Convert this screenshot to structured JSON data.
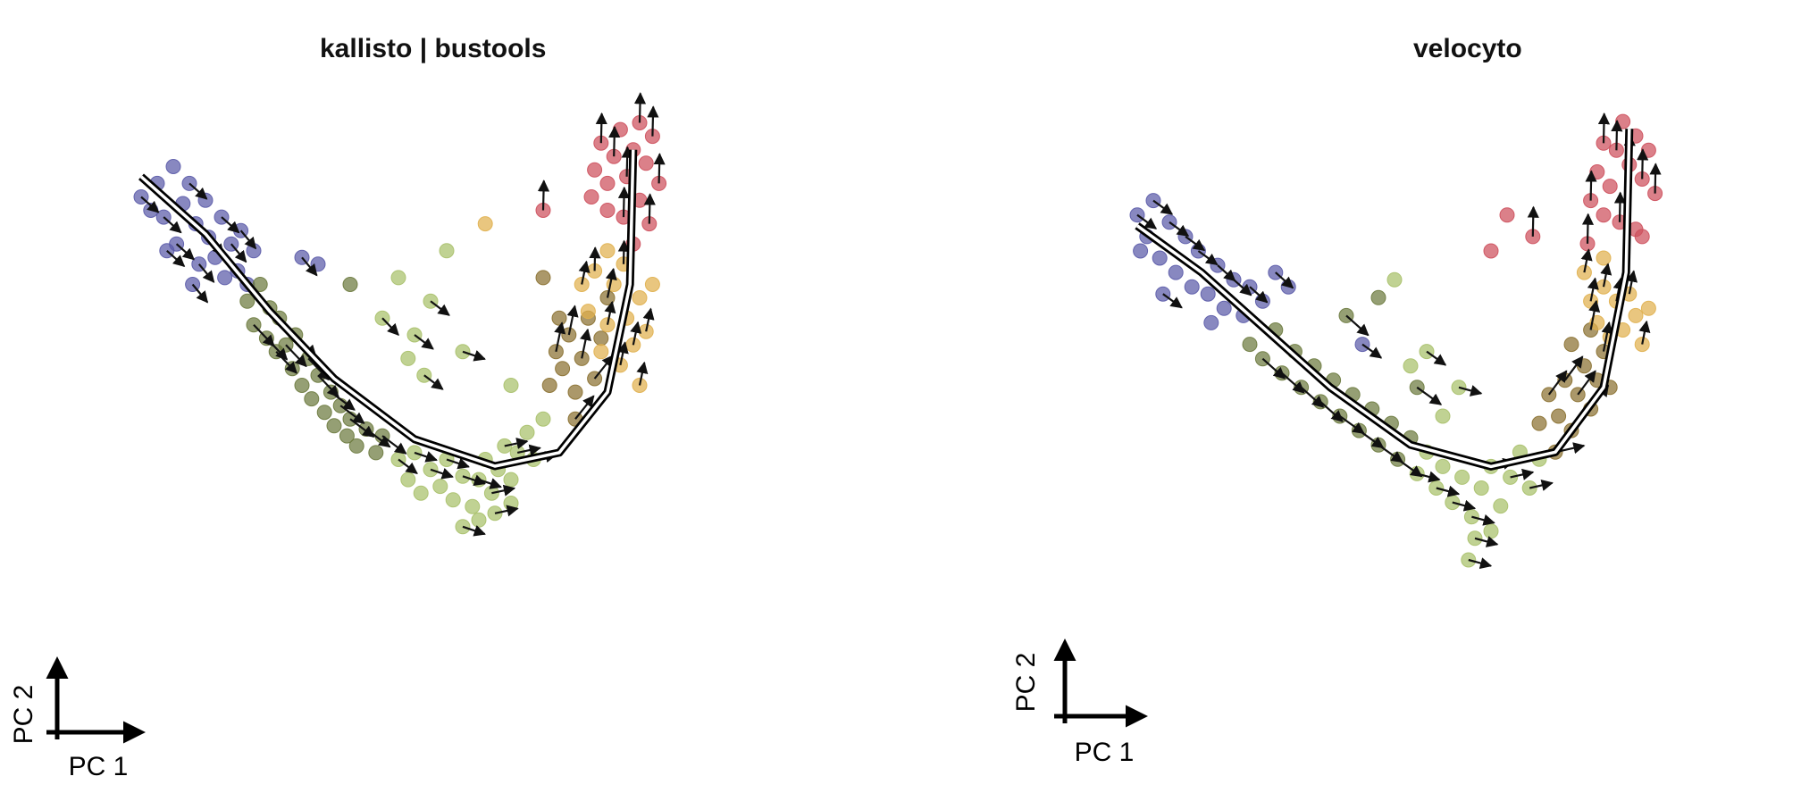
{
  "chart_data": [
    {
      "type": "scatter",
      "title": "kallisto | bustools",
      "xlabel": "PC 1",
      "ylabel": "PC 2",
      "grid": false,
      "legend": "none",
      "principal_curve": [
        [
          -0.95,
          0.92
        ],
        [
          -0.75,
          0.75
        ],
        [
          -0.55,
          0.52
        ],
        [
          -0.35,
          0.32
        ],
        [
          -0.1,
          0.14
        ],
        [
          0.15,
          0.06
        ],
        [
          0.35,
          0.1
        ],
        [
          0.5,
          0.28
        ],
        [
          0.57,
          0.6
        ],
        [
          0.58,
          1.0
        ]
      ],
      "series": [
        {
          "name": "",
          "color": "#5a5aa8",
          "points": [
            [
              -0.95,
              0.86
            ],
            [
              -0.9,
              0.9
            ],
            [
              -0.88,
              0.8
            ],
            [
              -0.85,
              0.95
            ],
            [
              -0.84,
              0.72
            ],
            [
              -0.82,
              0.84
            ],
            [
              -0.8,
              0.9
            ],
            [
              -0.78,
              0.78
            ],
            [
              -0.77,
              0.66
            ],
            [
              -0.75,
              0.85
            ],
            [
              -0.74,
              0.74
            ],
            [
              -0.72,
              0.68
            ],
            [
              -0.7,
              0.8
            ],
            [
              -0.69,
              0.62
            ],
            [
              -0.67,
              0.72
            ],
            [
              -0.65,
              0.64
            ],
            [
              -0.64,
              0.76
            ],
            [
              -0.62,
              0.6
            ],
            [
              -0.87,
              0.7
            ],
            [
              -0.92,
              0.82
            ],
            [
              -0.79,
              0.6
            ],
            [
              -0.6,
              0.7
            ],
            [
              -0.45,
              0.68
            ],
            [
              -0.4,
              0.66
            ]
          ]
        },
        {
          "name": "",
          "color": "#6c7a3e",
          "points": [
            [
              -0.62,
              0.55
            ],
            [
              -0.6,
              0.48
            ],
            [
              -0.58,
              0.6
            ],
            [
              -0.56,
              0.44
            ],
            [
              -0.55,
              0.53
            ],
            [
              -0.53,
              0.4
            ],
            [
              -0.52,
              0.5
            ],
            [
              -0.5,
              0.42
            ],
            [
              -0.48,
              0.35
            ],
            [
              -0.47,
              0.45
            ],
            [
              -0.45,
              0.3
            ],
            [
              -0.43,
              0.38
            ],
            [
              -0.42,
              0.26
            ],
            [
              -0.4,
              0.33
            ],
            [
              -0.38,
              0.22
            ],
            [
              -0.36,
              0.28
            ],
            [
              -0.35,
              0.18
            ],
            [
              -0.33,
              0.24
            ],
            [
              -0.31,
              0.15
            ],
            [
              -0.3,
              0.2
            ],
            [
              -0.28,
              0.12
            ],
            [
              -0.25,
              0.17
            ],
            [
              -0.22,
              0.1
            ],
            [
              -0.2,
              0.15
            ],
            [
              -0.3,
              0.6
            ]
          ]
        },
        {
          "name": "",
          "color": "#a8c06a",
          "points": [
            [
              -0.15,
              0.08
            ],
            [
              -0.12,
              0.02
            ],
            [
              -0.1,
              0.1
            ],
            [
              -0.08,
              -0.02
            ],
            [
              -0.05,
              0.05
            ],
            [
              -0.02,
              0.0
            ],
            [
              0.0,
              0.08
            ],
            [
              0.02,
              -0.04
            ],
            [
              0.05,
              0.03
            ],
            [
              0.08,
              -0.06
            ],
            [
              0.1,
              0.02
            ],
            [
              0.12,
              0.08
            ],
            [
              0.14,
              -0.02
            ],
            [
              0.16,
              0.05
            ],
            [
              0.18,
              0.12
            ],
            [
              0.2,
              0.02
            ],
            [
              0.22,
              0.1
            ],
            [
              0.25,
              0.16
            ],
            [
              0.27,
              0.08
            ],
            [
              0.3,
              0.2
            ],
            [
              0.05,
              -0.12
            ],
            [
              0.1,
              -0.1
            ],
            [
              0.15,
              -0.08
            ],
            [
              0.2,
              -0.05
            ],
            [
              -0.2,
              0.5
            ],
            [
              -0.15,
              0.62
            ],
            [
              -0.1,
              0.45
            ],
            [
              -0.12,
              0.38
            ],
            [
              -0.05,
              0.55
            ],
            [
              0.0,
              0.7
            ],
            [
              0.05,
              0.4
            ],
            [
              0.2,
              0.3
            ],
            [
              -0.07,
              0.33
            ]
          ]
        },
        {
          "name": "",
          "color": "#8a7030",
          "points": [
            [
              0.32,
              0.3
            ],
            [
              0.34,
              0.4
            ],
            [
              0.36,
              0.35
            ],
            [
              0.38,
              0.45
            ],
            [
              0.4,
              0.28
            ],
            [
              0.42,
              0.38
            ],
            [
              0.44,
              0.5
            ],
            [
              0.46,
              0.32
            ],
            [
              0.48,
              0.44
            ],
            [
              0.5,
              0.56
            ],
            [
              0.35,
              0.5
            ],
            [
              0.4,
              0.2
            ],
            [
              0.3,
              0.62
            ]
          ]
        },
        {
          "name": "",
          "color": "#e0b04e",
          "points": [
            [
              0.42,
              0.6
            ],
            [
              0.44,
              0.52
            ],
            [
              0.46,
              0.64
            ],
            [
              0.48,
              0.4
            ],
            [
              0.5,
              0.48
            ],
            [
              0.52,
              0.6
            ],
            [
              0.54,
              0.36
            ],
            [
              0.56,
              0.5
            ],
            [
              0.58,
              0.42
            ],
            [
              0.6,
              0.56
            ],
            [
              0.62,
              0.46
            ],
            [
              0.64,
              0.6
            ],
            [
              0.55,
              0.66
            ],
            [
              0.5,
              0.7
            ],
            [
              0.6,
              0.3
            ],
            [
              0.12,
              0.78
            ]
          ]
        },
        {
          "name": "",
          "color": "#cd4f5c",
          "points": [
            [
              0.46,
              0.94
            ],
            [
              0.48,
              1.02
            ],
            [
              0.5,
              0.9
            ],
            [
              0.52,
              0.98
            ],
            [
              0.54,
              1.06
            ],
            [
              0.56,
              0.92
            ],
            [
              0.58,
              1.0
            ],
            [
              0.6,
              1.08
            ],
            [
              0.62,
              0.96
            ],
            [
              0.64,
              1.04
            ],
            [
              0.5,
              0.82
            ],
            [
              0.55,
              0.8
            ],
            [
              0.6,
              0.85
            ],
            [
              0.63,
              0.78
            ],
            [
              0.45,
              0.86
            ],
            [
              0.3,
              0.82
            ],
            [
              0.58,
              0.72
            ],
            [
              0.66,
              0.9
            ]
          ]
        }
      ]
    },
    {
      "type": "scatter",
      "title": "velocyto",
      "xlabel": "PC 1",
      "ylabel": "PC 2",
      "grid": false,
      "legend": "none",
      "principal_curve": [
        [
          -0.95,
          0.75
        ],
        [
          -0.75,
          0.62
        ],
        [
          -0.55,
          0.46
        ],
        [
          -0.35,
          0.3
        ],
        [
          -0.1,
          0.14
        ],
        [
          0.15,
          0.08
        ],
        [
          0.35,
          0.12
        ],
        [
          0.5,
          0.3
        ],
        [
          0.57,
          0.62
        ],
        [
          0.58,
          1.02
        ]
      ],
      "series": [
        {
          "name": "",
          "color": "#5a5aa8",
          "points": [
            [
              -0.95,
              0.78
            ],
            [
              -0.92,
              0.72
            ],
            [
              -0.9,
              0.82
            ],
            [
              -0.88,
              0.66
            ],
            [
              -0.85,
              0.76
            ],
            [
              -0.83,
              0.62
            ],
            [
              -0.8,
              0.72
            ],
            [
              -0.78,
              0.58
            ],
            [
              -0.76,
              0.68
            ],
            [
              -0.73,
              0.56
            ],
            [
              -0.7,
              0.64
            ],
            [
              -0.68,
              0.52
            ],
            [
              -0.65,
              0.6
            ],
            [
              -0.62,
              0.5
            ],
            [
              -0.6,
              0.58
            ],
            [
              -0.56,
              0.54
            ],
            [
              -0.52,
              0.62
            ],
            [
              -0.48,
              0.58
            ],
            [
              -0.87,
              0.56
            ],
            [
              -0.94,
              0.68
            ],
            [
              -0.25,
              0.42
            ],
            [
              -0.72,
              0.48
            ]
          ]
        },
        {
          "name": "",
          "color": "#6c7a3e",
          "points": [
            [
              -0.6,
              0.42
            ],
            [
              -0.56,
              0.38
            ],
            [
              -0.52,
              0.46
            ],
            [
              -0.5,
              0.34
            ],
            [
              -0.46,
              0.4
            ],
            [
              -0.44,
              0.3
            ],
            [
              -0.4,
              0.36
            ],
            [
              -0.38,
              0.26
            ],
            [
              -0.34,
              0.32
            ],
            [
              -0.32,
              0.22
            ],
            [
              -0.28,
              0.28
            ],
            [
              -0.26,
              0.18
            ],
            [
              -0.22,
              0.24
            ],
            [
              -0.2,
              0.14
            ],
            [
              -0.16,
              0.2
            ],
            [
              -0.14,
              0.1
            ],
            [
              -0.1,
              0.16
            ],
            [
              -0.3,
              0.5
            ],
            [
              -0.2,
              0.55
            ],
            [
              -0.08,
              0.3
            ]
          ]
        },
        {
          "name": "",
          "color": "#a8c06a",
          "points": [
            [
              -0.08,
              0.06
            ],
            [
              -0.05,
              0.12
            ],
            [
              -0.02,
              0.02
            ],
            [
              0.0,
              0.08
            ],
            [
              0.03,
              -0.02
            ],
            [
              0.06,
              0.05
            ],
            [
              0.09,
              -0.06
            ],
            [
              0.12,
              0.02
            ],
            [
              0.15,
              0.08
            ],
            [
              0.18,
              -0.03
            ],
            [
              0.21,
              0.05
            ],
            [
              0.24,
              0.12
            ],
            [
              0.27,
              0.02
            ],
            [
              0.3,
              0.1
            ],
            [
              0.1,
              -0.12
            ],
            [
              0.15,
              -0.1
            ],
            [
              0.08,
              -0.18
            ],
            [
              -0.1,
              0.36
            ],
            [
              -0.05,
              0.4
            ],
            [
              0.0,
              0.22
            ],
            [
              0.05,
              0.3
            ],
            [
              -0.15,
              0.6
            ]
          ]
        },
        {
          "name": "",
          "color": "#8a7030",
          "points": [
            [
              0.3,
              0.2
            ],
            [
              0.33,
              0.28
            ],
            [
              0.36,
              0.22
            ],
            [
              0.38,
              0.32
            ],
            [
              0.4,
              0.18
            ],
            [
              0.42,
              0.28
            ],
            [
              0.44,
              0.36
            ],
            [
              0.46,
              0.24
            ],
            [
              0.48,
              0.32
            ],
            [
              0.5,
              0.4
            ],
            [
              0.52,
              0.3
            ],
            [
              0.35,
              0.12
            ],
            [
              0.4,
              0.42
            ],
            [
              0.46,
              0.46
            ]
          ]
        },
        {
          "name": "",
          "color": "#e0b04e",
          "points": [
            [
              0.46,
              0.54
            ],
            [
              0.48,
              0.48
            ],
            [
              0.5,
              0.58
            ],
            [
              0.52,
              0.44
            ],
            [
              0.54,
              0.54
            ],
            [
              0.56,
              0.46
            ],
            [
              0.58,
              0.56
            ],
            [
              0.6,
              0.5
            ],
            [
              0.62,
              0.42
            ],
            [
              0.64,
              0.52
            ],
            [
              0.44,
              0.62
            ],
            [
              0.5,
              0.66
            ]
          ]
        },
        {
          "name": "",
          "color": "#cd4f5c",
          "points": [
            [
              0.48,
              0.9
            ],
            [
              0.5,
              0.98
            ],
            [
              0.52,
              0.86
            ],
            [
              0.54,
              0.96
            ],
            [
              0.56,
              1.04
            ],
            [
              0.58,
              0.92
            ],
            [
              0.6,
              1.0
            ],
            [
              0.62,
              0.88
            ],
            [
              0.64,
              0.96
            ],
            [
              0.66,
              0.84
            ],
            [
              0.5,
              0.78
            ],
            [
              0.55,
              0.76
            ],
            [
              0.6,
              0.74
            ],
            [
              0.46,
              0.82
            ],
            [
              0.2,
              0.78
            ],
            [
              0.28,
              0.72
            ],
            [
              0.15,
              0.68
            ],
            [
              0.45,
              0.7
            ],
            [
              0.62,
              0.72
            ]
          ]
        }
      ]
    }
  ]
}
